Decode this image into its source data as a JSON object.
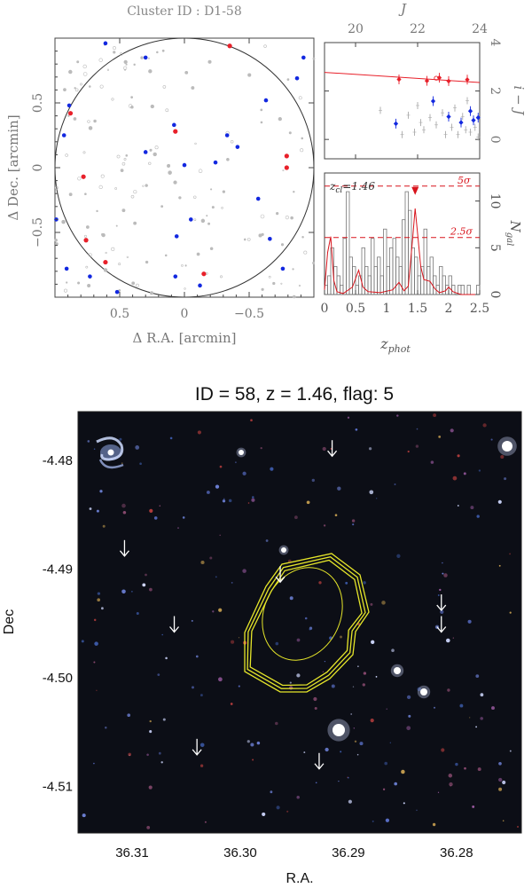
{
  "top_figure": {
    "title": "Cluster ID : D1-58"
  },
  "bottom_figure": {
    "title": "ID = 58, z = 1.46, flag: 5"
  },
  "colors": {
    "red": "#e8202a",
    "blue": "#1228e0",
    "grey": "#aaaaaa",
    "contour": "#e6e62a",
    "arrow": "#ffffff"
  },
  "chart_data": [
    {
      "type": "scatter",
      "panel": "sky-map",
      "xlabel": "Δ R.A. [arcmin]",
      "ylabel": "Δ Dec. [arcmin]",
      "xlim": [
        1.0,
        -1.0
      ],
      "ylim": [
        -1.0,
        1.0
      ],
      "x_ticks": [
        "0.5",
        "0",
        "−0.5"
      ],
      "y_ticks": [
        "−0.5",
        "0",
        "0.5"
      ],
      "circle_radius": 1.0,
      "series": [
        {
          "color": "red",
          "points": [
            [
              0.88,
              0.42
            ],
            [
              0.07,
              0.28
            ],
            [
              0.78,
              -0.07
            ],
            [
              -0.79,
              0.09
            ],
            [
              -0.79,
              0.0
            ],
            [
              0.61,
              -0.73
            ],
            [
              -0.15,
              -0.82
            ],
            [
              0.76,
              -0.56
            ],
            [
              -0.35,
              0.94
            ]
          ]
        },
        {
          "color": "blue",
          "points": [
            [
              0.61,
              0.96
            ],
            [
              0.89,
              0.48
            ],
            [
              0.93,
              0.25
            ],
            [
              0.08,
              0.33
            ],
            [
              -0.41,
              0.16
            ],
            [
              -0.63,
              0.52
            ],
            [
              0.0,
              0.02
            ],
            [
              0.3,
              0.12
            ],
            [
              -0.57,
              -0.24
            ],
            [
              -0.05,
              -0.4
            ],
            [
              0.06,
              -0.53
            ],
            [
              -0.66,
              -0.55
            ],
            [
              -0.76,
              -0.78
            ],
            [
              0.91,
              -0.78
            ],
            [
              0.73,
              -0.84
            ],
            [
              0.07,
              -0.84
            ],
            [
              -0.12,
              -0.91
            ],
            [
              0.52,
              -0.96
            ],
            [
              -0.87,
              0.69
            ],
            [
              -0.92,
              0.85
            ],
            [
              0.99,
              -0.4
            ],
            [
              0.3,
              0.85
            ],
            [
              -0.24,
              0.04
            ],
            [
              -0.33,
              0.25
            ]
          ]
        }
      ]
    },
    {
      "type": "scatter",
      "panel": "colour-magnitude",
      "xlabel": "J",
      "ylabel": "i − J",
      "xlim": [
        19,
        24
      ],
      "ylim": [
        -0.8,
        4.0
      ],
      "x_ticks": [
        "20",
        "22",
        "24"
      ],
      "y_ticks": [
        "0",
        "2",
        "4"
      ],
      "red_sequence_line": [
        [
          19.0,
          2.77
        ],
        [
          24.0,
          2.35
        ]
      ],
      "series": [
        {
          "color": "red",
          "points": [
            [
              21.4,
              2.48
            ],
            [
              22.3,
              2.42
            ],
            [
              23.0,
              2.41
            ],
            [
              23.6,
              2.47
            ],
            [
              22.7,
              2.55
            ]
          ]
        },
        {
          "color": "blue",
          "points": [
            [
              21.3,
              0.65
            ],
            [
              22.5,
              1.58
            ],
            [
              23.0,
              0.94
            ],
            [
              23.4,
              0.7
            ],
            [
              23.7,
              1.17
            ],
            [
              23.8,
              0.79
            ],
            [
              23.95,
              0.9
            ]
          ]
        },
        {
          "color": "grey",
          "points": [
            [
              20.8,
              1.2
            ],
            [
              21.7,
              1.0
            ],
            [
              21.9,
              0.3
            ],
            [
              22.1,
              0.7
            ],
            [
              22.2,
              0.4
            ],
            [
              22.4,
              0.9
            ],
            [
              22.6,
              0.6
            ],
            [
              22.8,
              1.1
            ],
            [
              22.9,
              0.2
            ],
            [
              23.1,
              0.5
            ],
            [
              23.2,
              1.3
            ],
            [
              23.3,
              0.2
            ],
            [
              23.45,
              0.95
            ],
            [
              23.55,
              0.4
            ],
            [
              23.7,
              0.3
            ],
            [
              23.85,
              0.5
            ],
            [
              23.95,
              0.1
            ],
            [
              22.0,
              1.4
            ],
            [
              21.5,
              0.2
            ],
            [
              23.6,
              1.6
            ]
          ]
        }
      ]
    },
    {
      "type": "bar",
      "panel": "photometric-redshift-histogram",
      "xlabel": "z_phot",
      "ylabel": "N_gal",
      "xlim": [
        0,
        2.5
      ],
      "ylim": [
        0,
        13
      ],
      "x_ticks": [
        "0",
        "0.5",
        "1",
        "1.5",
        "2",
        "2.5"
      ],
      "y_ticks": [
        "0",
        "5",
        "10"
      ],
      "annotation_z_cl": "1.46",
      "annotation_5sigma": "5σ",
      "annotation_2_5sigma": "2.5σ",
      "levels": {
        "five_sigma": 11.6,
        "two_point_five_sigma": 6.1
      },
      "peak_marker_z": 1.46,
      "bin_width": 0.05,
      "values": [
        1,
        2,
        5,
        3,
        2,
        1,
        6,
        11,
        4,
        3,
        1,
        2,
        5,
        3,
        2,
        6,
        3,
        4,
        2,
        7,
        3,
        5,
        6,
        4,
        3,
        8,
        11,
        9,
        5,
        4,
        2,
        3,
        7,
        3,
        4,
        2,
        1,
        3,
        2,
        1,
        2,
        1,
        0,
        1,
        1,
        0,
        1,
        0,
        0,
        1
      ],
      "density_curve": [
        [
          0.0,
          0.5
        ],
        [
          0.05,
          4.5
        ],
        [
          0.1,
          6.2
        ],
        [
          0.15,
          1.5
        ],
        [
          0.2,
          0.3
        ],
        [
          0.3,
          0.1
        ],
        [
          0.45,
          0.8
        ],
        [
          0.55,
          2.6
        ],
        [
          0.62,
          0.8
        ],
        [
          0.7,
          0.3
        ],
        [
          0.9,
          0.2
        ],
        [
          1.1,
          0.5
        ],
        [
          1.2,
          1.3
        ],
        [
          1.28,
          0.4
        ],
        [
          1.35,
          0.9
        ],
        [
          1.42,
          6.0
        ],
        [
          1.46,
          9.2
        ],
        [
          1.5,
          6.5
        ],
        [
          1.55,
          3.0
        ],
        [
          1.6,
          1.6
        ],
        [
          1.7,
          1.4
        ],
        [
          1.78,
          0.6
        ],
        [
          1.85,
          0.2
        ],
        [
          1.95,
          0.4
        ],
        [
          2.0,
          0.8
        ],
        [
          2.07,
          0.3
        ],
        [
          2.2,
          0.0
        ],
        [
          2.5,
          0.0
        ]
      ]
    },
    {
      "type": "scatter",
      "panel": "colour-image",
      "xlabel": "R.A.",
      "ylabel": "Dec",
      "xlim": [
        36.315,
        36.274
      ],
      "ylim": [
        -4.5143,
        -4.4755
      ],
      "x_ticks": [
        "36.31",
        "36.30",
        "36.29",
        "36.28"
      ],
      "y_ticks": [
        "-4.48",
        "-4.49",
        "-4.50",
        "-4.51"
      ],
      "series": [
        {
          "name": "arrows",
          "color": "arrow",
          "points": [
            [
              36.2915,
              -4.4796
            ],
            [
              36.3107,
              -4.4888
            ],
            [
              36.2963,
              -4.4912
            ],
            [
              36.3061,
              -4.4958
            ],
            [
              36.2814,
              -4.4938
            ],
            [
              36.2814,
              -4.4958
            ],
            [
              36.304,
              -4.5071
            ],
            [
              36.2927,
              -4.5084
            ]
          ]
        }
      ],
      "contour_center": [
        36.2946,
        -4.4963
      ]
    }
  ]
}
